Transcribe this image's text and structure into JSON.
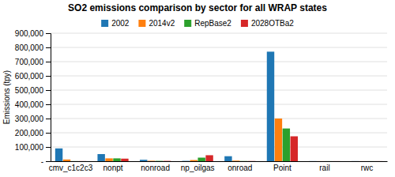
{
  "chart_data": {
    "type": "bar",
    "title": "SO2 emissions comparison by sector for all WRAP states",
    "ylabel": "Emissions (tpy)",
    "categories": [
      "cmv_c1c2c3",
      "nonpt",
      "nonroad",
      "np_oilgas",
      "onroad",
      "Point",
      "rail",
      "rwc"
    ],
    "series": [
      {
        "name": "2002",
        "values": [
          90000,
          50000,
          10000,
          2000,
          35000,
          770000,
          500,
          500
        ]
      },
      {
        "name": "2014v2",
        "values": [
          12000,
          20000,
          3000,
          8000,
          4000,
          300000,
          300,
          300
        ]
      },
      {
        "name": "RepBase2",
        "values": [
          500,
          20000,
          2000,
          25000,
          1000,
          230000,
          300,
          300
        ]
      },
      {
        "name": "2028OTBa2",
        "values": [
          500,
          18000,
          2000,
          42000,
          1000,
          175000,
          300,
          300
        ]
      }
    ],
    "ylim": [
      0,
      900000
    ],
    "yticks": [
      {
        "value": 0,
        "label": "-"
      },
      {
        "value": 100000,
        "label": "100,000"
      },
      {
        "value": 200000,
        "label": "200,000"
      },
      {
        "value": 300000,
        "label": "300,000"
      },
      {
        "value": 400000,
        "label": "400,000"
      },
      {
        "value": 500000,
        "label": "500,000"
      },
      {
        "value": 600000,
        "label": "600,000"
      },
      {
        "value": 700000,
        "label": "700,000"
      },
      {
        "value": 800000,
        "label": "800,000"
      },
      {
        "value": 900000,
        "label": "900,000"
      }
    ],
    "grid": true,
    "legend": "top"
  }
}
